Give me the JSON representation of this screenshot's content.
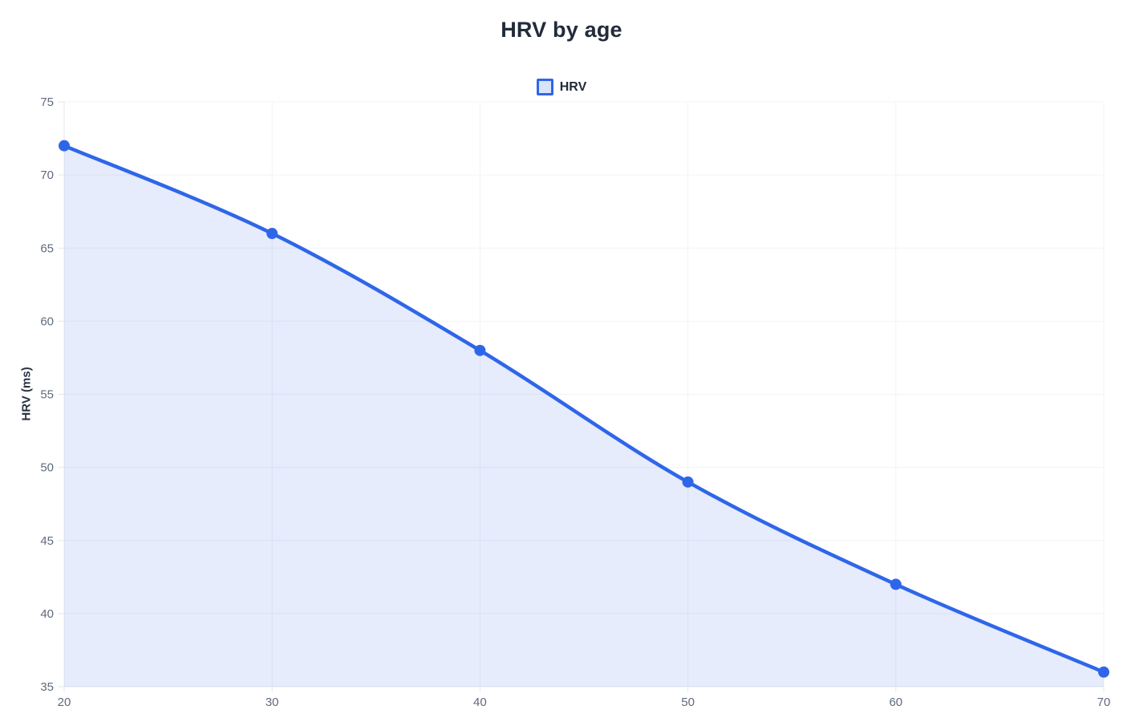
{
  "chart_data": {
    "type": "area",
    "title": "HRV by age",
    "xlabel": "",
    "ylabel": "HRV (ms)",
    "legend_position": "top",
    "grid": true,
    "x": [
      20,
      30,
      40,
      50,
      60,
      70
    ],
    "x_ticks": [
      20,
      30,
      40,
      50,
      60,
      70
    ],
    "y_ticks": [
      35,
      40,
      45,
      50,
      55,
      60,
      65,
      70,
      75
    ],
    "xlim": [
      20,
      70
    ],
    "ylim": [
      35,
      75
    ],
    "series": [
      {
        "name": "HRV",
        "values": [
          72,
          66,
          58,
          49,
          42,
          36
        ]
      }
    ]
  },
  "colors": {
    "line": "#2f66e9",
    "point": "#2f66e9",
    "area_fill": "rgba(47, 102, 233, 0.12)",
    "legend_marker_border": "#2f66e9",
    "legend_marker_fill": "#d9e4f8",
    "title_text": "#222b3a",
    "tick_text": "#5f6b7c",
    "gridline": "#f2f3f6",
    "axis_line": "#e4e7eb"
  }
}
